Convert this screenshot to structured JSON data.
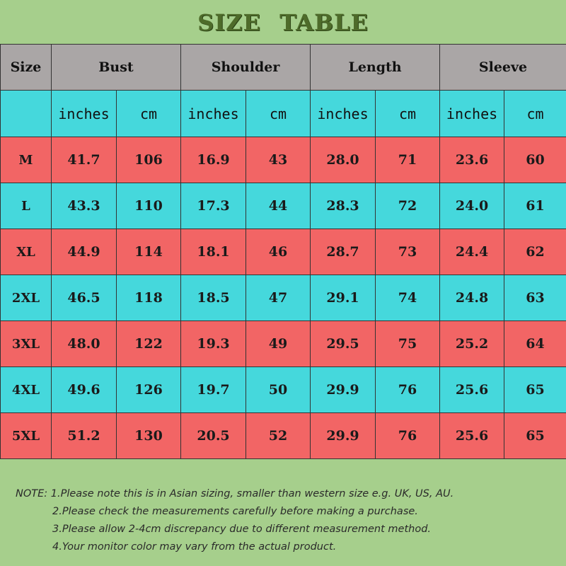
{
  "title": "SIZE TABLE",
  "header": {
    "size": "Size",
    "groups": [
      "Bust",
      "Shoulder",
      "Length",
      "Sleeve"
    ]
  },
  "units": [
    "inches",
    "cm",
    "inches",
    "cm",
    "inches",
    "cm",
    "inches",
    "cm"
  ],
  "rows": [
    {
      "size": "M",
      "values": [
        "41.7",
        "106",
        "16.9",
        "43",
        "28.0",
        "71",
        "23.6",
        "60"
      ]
    },
    {
      "size": "L",
      "values": [
        "43.3",
        "110",
        "17.3",
        "44",
        "28.3",
        "72",
        "24.0",
        "61"
      ]
    },
    {
      "size": "XL",
      "values": [
        "44.9",
        "114",
        "18.1",
        "46",
        "28.7",
        "73",
        "24.4",
        "62"
      ]
    },
    {
      "size": "2XL",
      "values": [
        "46.5",
        "118",
        "18.5",
        "47",
        "29.1",
        "74",
        "24.8",
        "63"
      ]
    },
    {
      "size": "3XL",
      "values": [
        "48.0",
        "122",
        "19.3",
        "49",
        "29.5",
        "75",
        "25.2",
        "64"
      ]
    },
    {
      "size": "4XL",
      "values": [
        "49.6",
        "126",
        "19.7",
        "50",
        "29.9",
        "76",
        "25.6",
        "65"
      ]
    },
    {
      "size": "5XL",
      "values": [
        "51.2",
        "130",
        "20.5",
        "52",
        "29.9",
        "76",
        "25.6",
        "65"
      ]
    }
  ],
  "notes": [
    "NOTE: 1.Please note this is in Asian sizing, smaller than western size e.g. UK, US, AU.",
    "2.Please check the measurements carefully before making a purchase.",
    "3.Please allow 2-4cm discrepancy due to different measurement method.",
    "4.Your monitor color may vary from the actual product."
  ],
  "colors": {
    "background": "#a6cf8c",
    "header": "#aaa6a6",
    "cyan_row": "#45d8dc",
    "red_row": "#f26565",
    "title": "#4e6b2a"
  }
}
